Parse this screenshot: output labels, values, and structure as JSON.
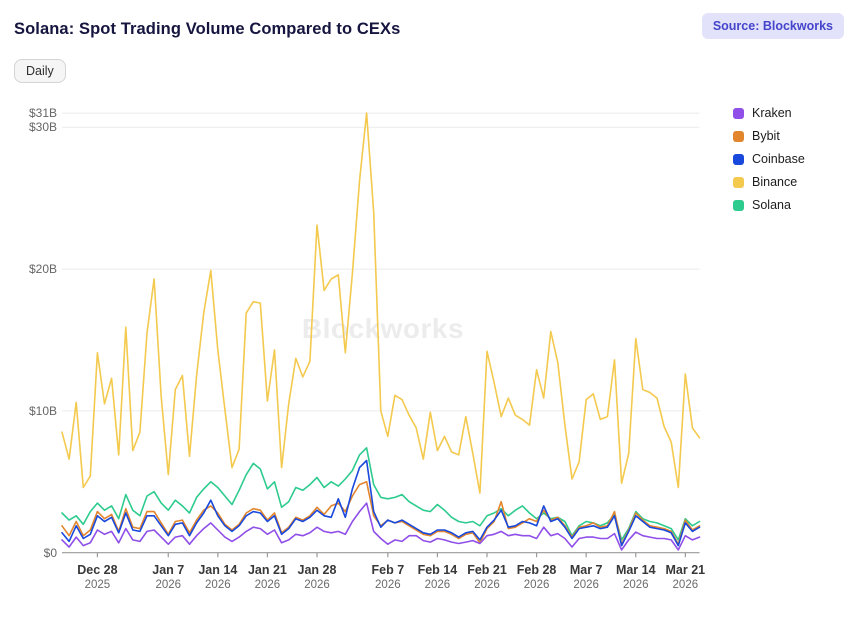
{
  "header": {
    "title": "Solana: Spot Trading Volume Compared to CEXs",
    "source_badge": "Source: Blockworks",
    "period_button": "Daily"
  },
  "watermark": "Blockworks",
  "legend": [
    {
      "label": "Kraken",
      "color": "#8f4fe8"
    },
    {
      "label": "Bybit",
      "color": "#e2862e"
    },
    {
      "label": "Coinbase",
      "color": "#1948dc"
    },
    {
      "label": "Binance",
      "color": "#f3c94e"
    },
    {
      "label": "Solana",
      "color": "#2dcb8e"
    }
  ],
  "chart_data": {
    "type": "line",
    "title": "Solana: Spot Trading Volume Compared to CEXs",
    "unit": "USD billions per day",
    "frequency": "daily",
    "start_date": "Dec 23 2025",
    "end_date": "Mar 23 2026",
    "ylim": [
      0,
      31
    ],
    "grid": "horizontal",
    "legend_position": "right",
    "y_ticks": [
      {
        "value": 31,
        "label": "$31B"
      },
      {
        "value": 30,
        "label": "$30B"
      },
      {
        "value": 20,
        "label": "$20B"
      },
      {
        "value": 10,
        "label": "$10B"
      },
      {
        "value": 0,
        "label": "$0"
      }
    ],
    "x_ticks": [
      {
        "day": 5,
        "date": "Dec 28",
        "year": "2025"
      },
      {
        "day": 15,
        "date": "Jan 7",
        "year": "2026"
      },
      {
        "day": 22,
        "date": "Jan 14",
        "year": "2026"
      },
      {
        "day": 29,
        "date": "Jan 21",
        "year": "2026"
      },
      {
        "day": 36,
        "date": "Jan 28",
        "year": "2026"
      },
      {
        "day": 46,
        "date": "Feb 7",
        "year": "2026"
      },
      {
        "day": 53,
        "date": "Feb 14",
        "year": "2026"
      },
      {
        "day": 60,
        "date": "Feb 21",
        "year": "2026"
      },
      {
        "day": 67,
        "date": "Feb 28",
        "year": "2026"
      },
      {
        "day": 74,
        "date": "Mar 7",
        "year": "2026"
      },
      {
        "day": 81,
        "date": "Mar 14",
        "year": "2026"
      },
      {
        "day": 88,
        "date": "Mar 21",
        "year": "2026"
      }
    ],
    "series": [
      {
        "name": "Binance",
        "color": "#f3c94e",
        "values": [
          8.5,
          6.6,
          10.6,
          4.6,
          5.4,
          14.1,
          10.5,
          12.3,
          6.9,
          15.9,
          7.2,
          8.5,
          15.5,
          19.3,
          11.0,
          5.5,
          11.5,
          12.5,
          6.8,
          12.5,
          16.9,
          19.9,
          14.3,
          10.1,
          6.0,
          7.3,
          16.9,
          17.7,
          17.6,
          10.7,
          14.3,
          6.0,
          10.5,
          13.7,
          12.4,
          13.5,
          23.1,
          18.5,
          19.3,
          19.6,
          14.1,
          19.7,
          26.2,
          31.0,
          24.0,
          10.0,
          8.2,
          11.1,
          10.8,
          9.7,
          8.8,
          6.6,
          9.9,
          7.2,
          8.2,
          7.1,
          6.9,
          9.6,
          7.0,
          4.2,
          14.2,
          12.0,
          9.6,
          10.9,
          9.7,
          9.4,
          9.0,
          12.9,
          10.9,
          15.6,
          13.4,
          9.0,
          5.2,
          6.4,
          10.8,
          11.2,
          9.4,
          9.6,
          13.6,
          4.9,
          7.0,
          15.1,
          11.5,
          11.3,
          10.9,
          8.9,
          7.8,
          4.6,
          12.6,
          8.8,
          8.1
        ]
      },
      {
        "name": "Solana",
        "color": "#2dcb8e",
        "values": [
          2.8,
          2.3,
          2.6,
          2.0,
          2.9,
          3.5,
          3.0,
          3.3,
          2.4,
          4.1,
          3.0,
          2.6,
          4.0,
          4.3,
          3.5,
          3.0,
          3.7,
          3.3,
          2.8,
          3.9,
          4.5,
          5.0,
          4.6,
          4.0,
          3.4,
          4.4,
          5.5,
          6.3,
          5.9,
          4.5,
          5.0,
          3.2,
          3.6,
          4.6,
          4.4,
          4.8,
          5.3,
          4.6,
          5.0,
          4.7,
          5.2,
          5.8,
          6.9,
          7.4,
          4.8,
          3.9,
          3.8,
          3.9,
          4.1,
          3.6,
          3.3,
          3.0,
          2.9,
          3.4,
          3.0,
          2.5,
          2.2,
          2.1,
          2.2,
          1.9,
          2.6,
          2.8,
          3.1,
          2.6,
          3.0,
          3.3,
          2.8,
          2.4,
          2.8,
          2.4,
          2.5,
          2.2,
          1.2,
          1.9,
          2.2,
          2.1,
          1.9,
          2.1,
          2.7,
          0.9,
          1.7,
          2.9,
          2.4,
          2.2,
          2.1,
          1.9,
          1.7,
          0.9,
          2.4,
          1.9,
          2.2
        ]
      },
      {
        "name": "Bybit",
        "color": "#e2862e",
        "values": [
          1.9,
          1.2,
          2.2,
          1.2,
          1.6,
          2.9,
          2.4,
          2.7,
          1.5,
          3.1,
          1.8,
          1.7,
          2.9,
          2.9,
          2.1,
          1.3,
          2.2,
          2.3,
          1.4,
          2.3,
          3.0,
          3.3,
          2.8,
          2.0,
          1.6,
          2.0,
          2.8,
          3.1,
          3.0,
          2.3,
          2.8,
          1.4,
          1.8,
          2.5,
          2.3,
          2.6,
          3.2,
          2.7,
          3.3,
          3.5,
          2.9,
          4.0,
          4.8,
          5.0,
          2.6,
          1.9,
          2.3,
          2.1,
          2.2,
          1.9,
          1.6,
          1.3,
          1.2,
          1.5,
          1.5,
          1.3,
          1.0,
          1.3,
          1.4,
          0.7,
          1.7,
          2.2,
          3.6,
          1.7,
          1.8,
          2.1,
          2.4,
          2.2,
          3.0,
          2.3,
          2.5,
          1.9,
          1.1,
          1.8,
          1.9,
          2.1,
          1.8,
          1.9,
          2.9,
          0.6,
          1.6,
          2.8,
          2.3,
          1.9,
          1.8,
          1.7,
          1.5,
          0.6,
          2.3,
          1.6,
          1.9
        ]
      },
      {
        "name": "Coinbase",
        "color": "#1948dc",
        "values": [
          1.4,
          0.8,
          1.9,
          1.0,
          1.3,
          2.6,
          2.2,
          2.5,
          1.4,
          2.8,
          1.6,
          1.5,
          2.6,
          2.6,
          1.9,
          1.2,
          2.0,
          2.1,
          1.2,
          2.1,
          2.8,
          3.7,
          2.6,
          1.9,
          1.5,
          1.9,
          2.6,
          2.9,
          2.8,
          2.2,
          2.6,
          1.3,
          1.7,
          2.4,
          2.2,
          2.5,
          3.0,
          2.6,
          2.5,
          3.8,
          2.5,
          4.5,
          6.0,
          6.5,
          2.9,
          1.8,
          2.3,
          2.1,
          2.3,
          2.0,
          1.7,
          1.4,
          1.3,
          1.6,
          1.6,
          1.4,
          1.1,
          1.4,
          1.5,
          0.9,
          1.8,
          2.3,
          3.0,
          1.8,
          1.9,
          2.2,
          2.1,
          1.9,
          3.3,
          2.2,
          2.4,
          1.8,
          1.0,
          1.7,
          1.8,
          1.9,
          1.7,
          1.8,
          2.6,
          0.5,
          1.5,
          2.6,
          2.2,
          1.8,
          1.7,
          1.6,
          1.4,
          0.5,
          2.1,
          1.5,
          1.8
        ]
      },
      {
        "name": "Kraken",
        "color": "#8f4fe8",
        "values": [
          0.9,
          0.4,
          1.1,
          0.5,
          0.7,
          1.6,
          1.3,
          1.5,
          0.7,
          1.7,
          0.9,
          0.8,
          1.5,
          1.6,
          1.1,
          0.6,
          1.1,
          1.2,
          0.6,
          1.2,
          1.7,
          2.1,
          1.6,
          1.1,
          0.8,
          1.1,
          1.5,
          1.8,
          1.7,
          1.3,
          1.6,
          0.7,
          0.9,
          1.3,
          1.2,
          1.4,
          1.8,
          1.5,
          1.4,
          1.5,
          1.3,
          2.2,
          2.9,
          3.5,
          1.5,
          1.0,
          0.6,
          0.9,
          0.8,
          1.2,
          1.2,
          0.85,
          0.75,
          1.0,
          0.9,
          0.75,
          0.65,
          0.75,
          0.85,
          0.65,
          1.2,
          1.3,
          1.5,
          1.2,
          1.3,
          1.2,
          1.2,
          1.0,
          1.8,
          1.2,
          1.35,
          1.0,
          0.4,
          1.0,
          1.1,
          1.1,
          1.0,
          1.0,
          1.35,
          0.2,
          0.9,
          1.45,
          1.2,
          1.1,
          1.0,
          1.0,
          0.9,
          0.2,
          1.2,
          0.9,
          1.1
        ]
      }
    ]
  }
}
